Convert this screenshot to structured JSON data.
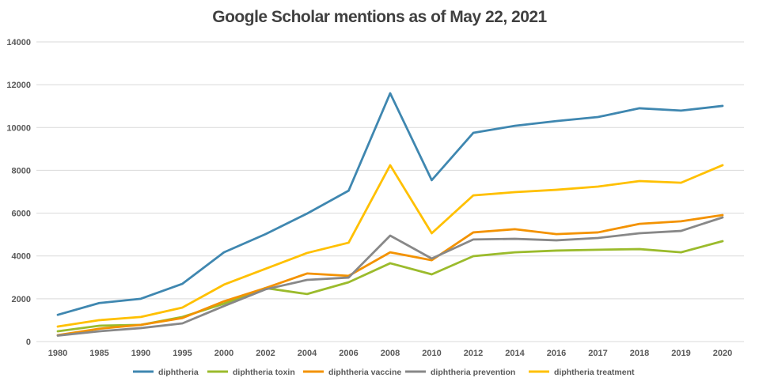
{
  "chart_data": {
    "type": "line",
    "title": "Google Scholar mentions as of May 22, 2021",
    "xlabel": "",
    "ylabel": "",
    "ylim": [
      0,
      14000
    ],
    "yticks": [
      "0",
      "2000",
      "4000",
      "6000",
      "8000",
      "10000",
      "12000",
      "14000"
    ],
    "grid": true,
    "legend_position": "bottom",
    "categories": [
      "1980",
      "1985",
      "1990",
      "1995",
      "2000",
      "2002",
      "2004",
      "2006",
      "2008",
      "2010",
      "2012",
      "2014",
      "2016",
      "2017",
      "2018",
      "2019",
      "2020"
    ],
    "series": [
      {
        "name": "diphtheria",
        "color": "#3F87B0",
        "values": [
          1250,
          1800,
          2000,
          2700,
          4170,
          5020,
          5980,
          7050,
          11600,
          7540,
          9750,
          10080,
          10300,
          10490,
          10900,
          10790,
          11010
        ]
      },
      {
        "name": "diphtheria toxin",
        "color": "#9BBB2C",
        "values": [
          480,
          740,
          780,
          1150,
          1770,
          2500,
          2220,
          2770,
          3660,
          3140,
          3990,
          4170,
          4250,
          4290,
          4320,
          4170,
          4690
        ]
      },
      {
        "name": "diphtheria vaccine",
        "color": "#F39200",
        "values": [
          300,
          600,
          780,
          1100,
          1880,
          2500,
          3180,
          3070,
          4170,
          3800,
          5100,
          5250,
          5020,
          5100,
          5500,
          5620,
          5910
        ]
      },
      {
        "name": "diphtheria prevention",
        "color": "#888888",
        "values": [
          280,
          480,
          630,
          850,
          1660,
          2440,
          2880,
          2990,
          4950,
          3880,
          4770,
          4800,
          4730,
          4840,
          5060,
          5170,
          5800
        ]
      },
      {
        "name": "diphtheria treatment",
        "color": "#FFC000",
        "values": [
          700,
          1000,
          1150,
          1590,
          2660,
          3400,
          4140,
          4620,
          8240,
          5060,
          6830,
          6980,
          7090,
          7240,
          7500,
          7420,
          8240
        ]
      }
    ]
  }
}
